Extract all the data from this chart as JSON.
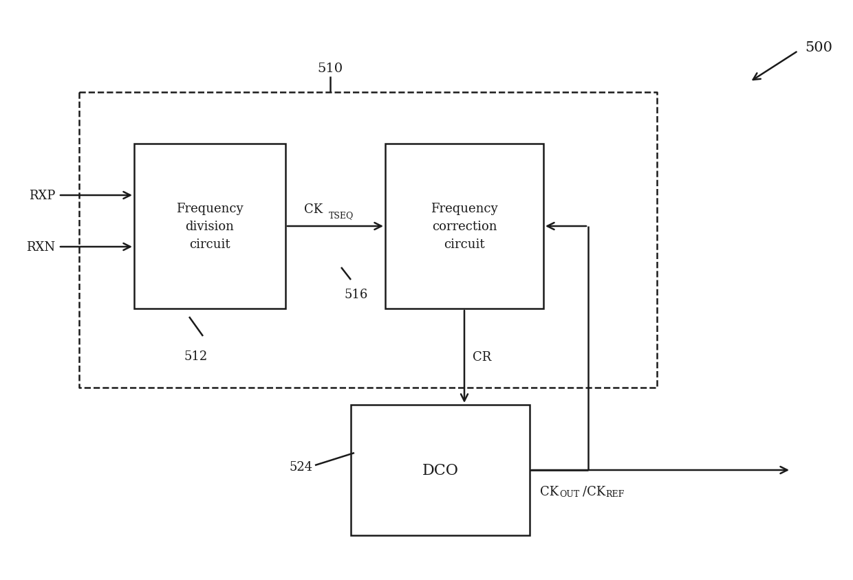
{
  "bg_color": "#ffffff",
  "line_color": "#1a1a1a",
  "fig_label": "500",
  "outer_box_label": "510",
  "box1_label": "512",
  "box2_label": "516",
  "box3_label": "524",
  "box1_text": "Frequency\ndivision\ncircuit",
  "box2_text": "Frequency\ncorrection\ncircuit",
  "box3_text": "DCO",
  "input1": "RXP",
  "input2": "RXN",
  "cr_label": "CR"
}
